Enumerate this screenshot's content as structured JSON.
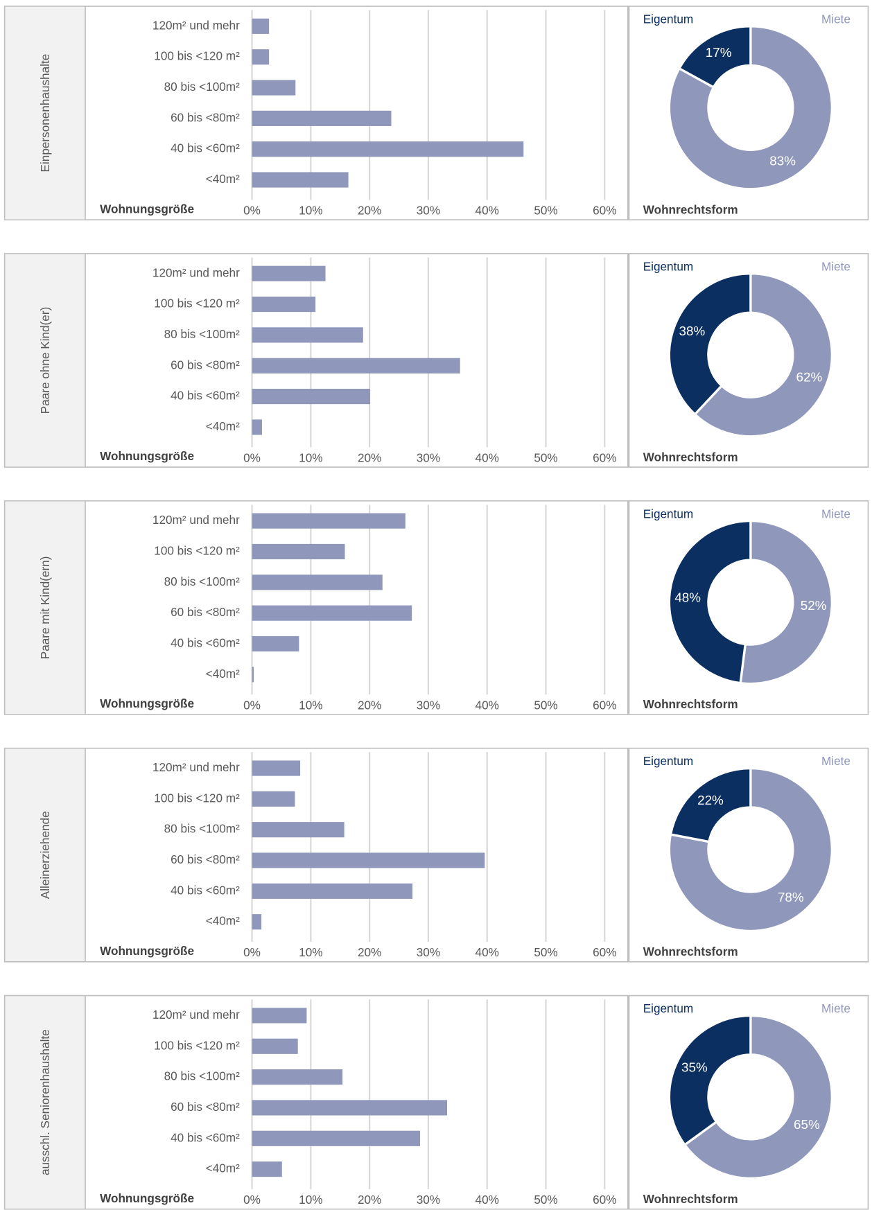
{
  "chart_data": [
    {
      "type": "bar",
      "orientation": "horizontal",
      "title": "Einpersonenhaushalte",
      "category_label": "Wohnungsgröße",
      "categories": [
        "120m² und mehr",
        "100 bis <120 m²",
        "80 bis <100m²",
        "60 bis <80m²",
        "40 bis <60m²",
        "<40m²"
      ],
      "values": [
        2.9,
        2.9,
        7.4,
        23.7,
        46.2,
        16.4
      ],
      "color": "#8f98bb",
      "xlim": [
        0,
        60
      ],
      "xticks": [
        {
          "value": 0,
          "label": "0%"
        },
        {
          "value": 10,
          "label": "10%"
        },
        {
          "value": 20,
          "label": "20%"
        },
        {
          "value": 30,
          "label": "30%"
        },
        {
          "value": 40,
          "label": "40%"
        },
        {
          "value": 50,
          "label": "50%"
        },
        {
          "value": 60,
          "label": "60%"
        }
      ],
      "grid": true
    },
    {
      "type": "pie",
      "donut": true,
      "title": "Wohnrechtsform",
      "categories": [
        "Eigentum",
        "Miete"
      ],
      "values": [
        17,
        83
      ],
      "value_labels": [
        "17%",
        "83%"
      ],
      "colors": [
        "#0b2f60",
        "#8f98bb"
      ]
    },
    {
      "type": "bar",
      "orientation": "horizontal",
      "title": "Paare ohne Kind(er)",
      "category_label": "Wohnungsgröße",
      "categories": [
        "120m² und mehr",
        "100 bis <120 m²",
        "80 bis <100m²",
        "60 bis <80m²",
        "40 bis <60m²",
        "<40m²"
      ],
      "values": [
        12.5,
        10.8,
        18.9,
        35.4,
        20.1,
        1.7
      ],
      "color": "#8f98bb",
      "xlim": [
        0,
        60
      ],
      "xticks": [
        {
          "value": 0,
          "label": "0%"
        },
        {
          "value": 10,
          "label": "10%"
        },
        {
          "value": 20,
          "label": "20%"
        },
        {
          "value": 30,
          "label": "30%"
        },
        {
          "value": 40,
          "label": "40%"
        },
        {
          "value": 50,
          "label": "50%"
        },
        {
          "value": 60,
          "label": "60%"
        }
      ],
      "grid": true
    },
    {
      "type": "pie",
      "donut": true,
      "title": "Wohnrechtsform",
      "categories": [
        "Eigentum",
        "Miete"
      ],
      "values": [
        38,
        62
      ],
      "value_labels": [
        "38%",
        "62%"
      ],
      "colors": [
        "#0b2f60",
        "#8f98bb"
      ]
    },
    {
      "type": "bar",
      "orientation": "horizontal",
      "title": "Paare mit Kind(ern)",
      "category_label": "Wohnungsgröße",
      "categories": [
        "120m² und mehr",
        "100 bis <120 m²",
        "80 bis <100m²",
        "60 bis <80m²",
        "40 bis <60m²",
        "<40m²"
      ],
      "values": [
        26.1,
        15.8,
        22.2,
        27.2,
        8.0,
        0.3
      ],
      "color": "#8f98bb",
      "xlim": [
        0,
        60
      ],
      "xticks": [
        {
          "value": 0,
          "label": "0%"
        },
        {
          "value": 10,
          "label": "10%"
        },
        {
          "value": 20,
          "label": "20%"
        },
        {
          "value": 30,
          "label": "30%"
        },
        {
          "value": 40,
          "label": "40%"
        },
        {
          "value": 50,
          "label": "50%"
        },
        {
          "value": 60,
          "label": "60%"
        }
      ],
      "grid": true
    },
    {
      "type": "pie",
      "donut": true,
      "title": "Wohnrechtsform",
      "categories": [
        "Eigentum",
        "Miete"
      ],
      "values": [
        48,
        52
      ],
      "value_labels": [
        "48%",
        "52%"
      ],
      "colors": [
        "#0b2f60",
        "#8f98bb"
      ]
    },
    {
      "type": "bar",
      "orientation": "horizontal",
      "title": "Alleinerziehende",
      "category_label": "Wohnungsgröße",
      "categories": [
        "120m² und mehr",
        "100 bis <120 m²",
        "80 bis <100m²",
        "60 bis <80m²",
        "40 bis <60m²",
        "<40m²"
      ],
      "values": [
        8.2,
        7.3,
        15.7,
        39.6,
        27.3,
        1.6
      ],
      "color": "#8f98bb",
      "xlim": [
        0,
        60
      ],
      "xticks": [
        {
          "value": 0,
          "label": "0%"
        },
        {
          "value": 10,
          "label": "10%"
        },
        {
          "value": 20,
          "label": "20%"
        },
        {
          "value": 30,
          "label": "30%"
        },
        {
          "value": 40,
          "label": "40%"
        },
        {
          "value": 50,
          "label": "50%"
        },
        {
          "value": 60,
          "label": "60%"
        }
      ],
      "grid": true
    },
    {
      "type": "pie",
      "donut": true,
      "title": "Wohnrechtsform",
      "categories": [
        "Eigentum",
        "Miete"
      ],
      "values": [
        22,
        78
      ],
      "value_labels": [
        "22%",
        "78%"
      ],
      "colors": [
        "#0b2f60",
        "#8f98bb"
      ]
    },
    {
      "type": "bar",
      "orientation": "horizontal",
      "title": "ausschl. Seniorenhaushalte",
      "category_label": "Wohnungsgröße",
      "categories": [
        "120m² und mehr",
        "100 bis <120 m²",
        "80 bis <100m²",
        "60 bis <80m²",
        "40 bis <60m²",
        "<40m²"
      ],
      "values": [
        9.3,
        7.8,
        15.4,
        33.2,
        28.6,
        5.1
      ],
      "color": "#8f98bb",
      "xlim": [
        0,
        60
      ],
      "xticks": [
        {
          "value": 0,
          "label": "0%"
        },
        {
          "value": 10,
          "label": "10%"
        },
        {
          "value": 20,
          "label": "20%"
        },
        {
          "value": 30,
          "label": "30%"
        },
        {
          "value": 40,
          "label": "40%"
        },
        {
          "value": 50,
          "label": "50%"
        },
        {
          "value": 60,
          "label": "60%"
        }
      ],
      "grid": true
    },
    {
      "type": "pie",
      "donut": true,
      "title": "Wohnrechtsform",
      "categories": [
        "Eigentum",
        "Miete"
      ],
      "values": [
        35,
        65
      ],
      "value_labels": [
        "35%",
        "65%"
      ],
      "colors": [
        "#0b2f60",
        "#8f98bb"
      ]
    }
  ]
}
